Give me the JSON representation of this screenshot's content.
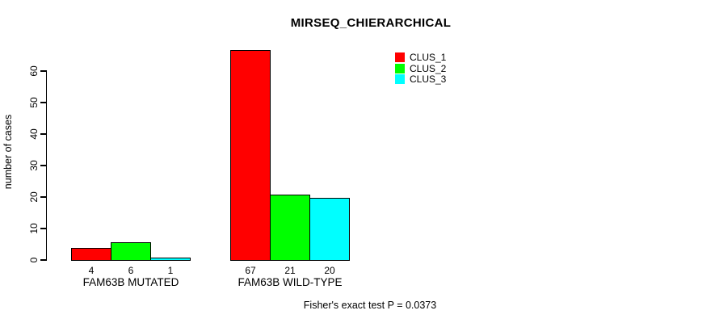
{
  "chart_data": {
    "type": "bar",
    "title": "MIRSEQ_CHIERARCHICAL",
    "ylabel": "number of cases",
    "xlabel": "",
    "categories": [
      "FAM63B MUTATED",
      "FAM63B WILD-TYPE"
    ],
    "series": [
      {
        "name": "CLUS_1",
        "color": "#ff0000",
        "values": [
          4,
          67
        ]
      },
      {
        "name": "CLUS_2",
        "color": "#00ff00",
        "values": [
          6,
          21
        ]
      },
      {
        "name": "CLUS_3",
        "color": "#00ffff",
        "values": [
          1,
          20
        ]
      }
    ],
    "bar_value_labels_shown": true,
    "yticks": [
      0,
      10,
      20,
      30,
      40,
      50,
      60
    ],
    "ylim": [
      0,
      69
    ],
    "grid": false,
    "legend_position": "top-right",
    "annotation": "Fisher's exact test P = 0.0373"
  }
}
